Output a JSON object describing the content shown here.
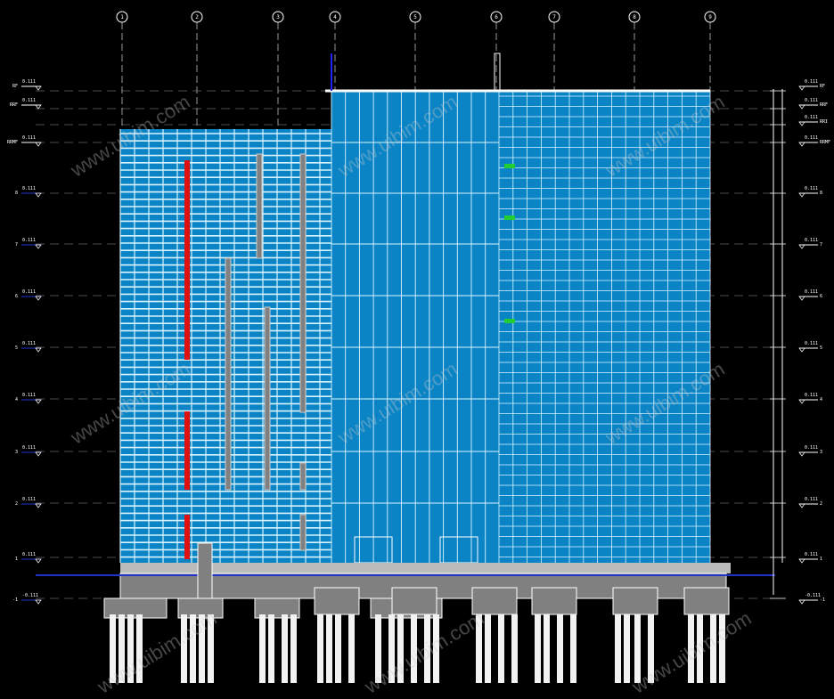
{
  "drawing": {
    "type": "building-elevation",
    "background": "#000000",
    "colors": {
      "curtain_wall": "#0b84c6",
      "mullion": "#d8f4ff",
      "structure": "#808080",
      "piles": "#f2f2f2",
      "accent_red": "#e01010",
      "accent_green": "#22cc33",
      "grid_line": "#ffffff",
      "level_marker": "#2233cc"
    },
    "grid_axes": [
      "1",
      "2",
      "3",
      "4",
      "5",
      "6",
      "7",
      "8",
      "9"
    ],
    "levels_left": [
      {
        "tag": "RF",
        "value": "0.111"
      },
      {
        "tag": "RRF",
        "value": "0.111"
      },
      {
        "tag": "RRMF",
        "value": "0.111"
      },
      {
        "tag": "8",
        "value": "0.111"
      },
      {
        "tag": "7",
        "value": "0.111"
      },
      {
        "tag": "6",
        "value": "0.111"
      },
      {
        "tag": "5",
        "value": "0.111"
      },
      {
        "tag": "4",
        "value": "0.111"
      },
      {
        "tag": "3",
        "value": "0.111"
      },
      {
        "tag": "2",
        "value": "0.111"
      },
      {
        "tag": "1",
        "value": "0.111"
      },
      {
        "tag": "-1",
        "value": "-0.111"
      }
    ],
    "levels_right": [
      {
        "tag": "RF",
        "value": "0.111"
      },
      {
        "tag": "RRF",
        "value": "0.111"
      },
      {
        "tag": "RRI",
        "value": "0.111"
      },
      {
        "tag": "RRMF",
        "value": "0.111"
      },
      {
        "tag": "8",
        "value": "0.111"
      },
      {
        "tag": "7",
        "value": "0.111"
      },
      {
        "tag": "6",
        "value": "0.111"
      },
      {
        "tag": "5",
        "value": "0.111"
      },
      {
        "tag": "4",
        "value": "0.111"
      },
      {
        "tag": "3",
        "value": "0.111"
      },
      {
        "tag": "2",
        "value": "0.111"
      },
      {
        "tag": "1",
        "value": "0.111"
      },
      {
        "tag": "-1",
        "value": "-0.111"
      }
    ],
    "watermark": "www.uibim.com"
  }
}
